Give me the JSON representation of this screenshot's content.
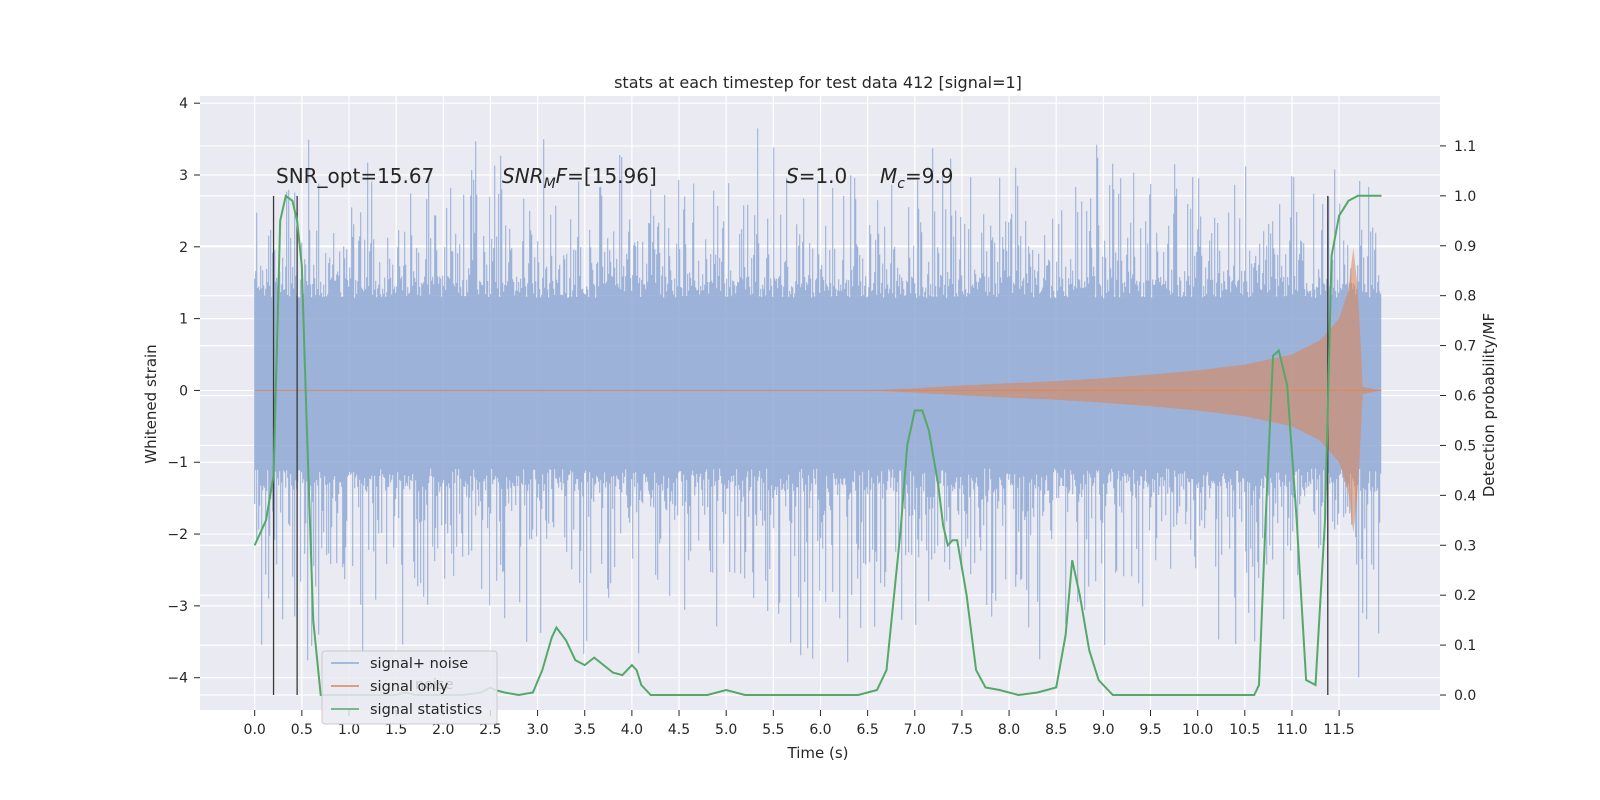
{
  "chart_data": {
    "type": "line",
    "title": "stats at each timestep for test data 412 [signal=1]",
    "xlabel": "Time (s)",
    "ylabel": "Whitened strain",
    "ylabel_right": "Detection probability/MF",
    "xlim": [
      -0.58,
      12.57
    ],
    "ylim": [
      -4.45,
      4.1
    ],
    "ylim_right": [
      -0.03,
      1.2
    ],
    "xticks": [
      "0.0",
      "0.5",
      "1.0",
      "1.5",
      "2.0",
      "2.5",
      "3.0",
      "3.5",
      "4.0",
      "4.5",
      "5.0",
      "5.5",
      "6.0",
      "6.5",
      "7.0",
      "7.5",
      "8.0",
      "8.5",
      "9.0",
      "9.5",
      "10.0",
      "10.5",
      "11.0",
      "11.5"
    ],
    "yticks": [
      "4",
      "3",
      "2",
      "1",
      "0",
      "−1",
      "−2",
      "−3",
      "−4"
    ],
    "yticks_right": [
      "1.1",
      "1.0",
      "0.9",
      "0.8",
      "0.7",
      "0.6",
      "0.5",
      "0.4",
      "0.3",
      "0.2",
      "0.1",
      "0.0"
    ],
    "grid": true,
    "legend": {
      "placement": "lower-left",
      "entries": [
        "signal+ noise",
        "signal only",
        "signal statistics"
      ],
      "ghost_text": "noise"
    },
    "annotations": {
      "snr_opt": "SNR_opt=15.67",
      "snr_mf_base": "SNR",
      "snr_mf_sub": "M",
      "snr_mf_rest": "F=[15.96]",
      "s_sym": "S",
      "s_rest": "=1.0",
      "mc_sym": "M",
      "mc_sub": "c",
      "mc_rest": "=9.9"
    },
    "series": [
      {
        "name": "signal+ noise",
        "color": "#8fa8d3",
        "t_range": [
          0.0,
          11.95
        ],
        "typical_range": [
          -1.4,
          1.6
        ],
        "peak_range": [
          -4.0,
          3.75
        ]
      },
      {
        "name": "signal only",
        "color": "#dd8452",
        "envelope": {
          "t": [
            0.0,
            6.5,
            7.0,
            7.5,
            8.0,
            8.5,
            9.0,
            9.5,
            10.0,
            10.5,
            11.0,
            11.3,
            11.5,
            11.6,
            11.65,
            11.7,
            11.75,
            11.95
          ],
          "amp": [
            0.0,
            0.0,
            0.03,
            0.07,
            0.1,
            0.13,
            0.17,
            0.22,
            0.28,
            0.36,
            0.5,
            0.7,
            1.0,
            1.4,
            2.0,
            1.4,
            0.05,
            0.0
          ]
        }
      },
      {
        "name": "signal statistics",
        "color": "#55a868",
        "axis": "right",
        "x": [
          0.0,
          0.12,
          0.2,
          0.27,
          0.33,
          0.4,
          0.45,
          0.5,
          0.55,
          0.62,
          0.7,
          0.78,
          1.0,
          1.2,
          1.4,
          1.5,
          1.6,
          1.7,
          1.9,
          2.2,
          2.4,
          2.45,
          2.5,
          2.55,
          2.65,
          2.8,
          2.95,
          3.05,
          3.15,
          3.2,
          3.3,
          3.4,
          3.5,
          3.6,
          3.7,
          3.8,
          3.9,
          4.0,
          4.05,
          4.1,
          4.2,
          4.4,
          4.6,
          4.8,
          5.0,
          5.2,
          5.6,
          6.0,
          6.4,
          6.6,
          6.7,
          6.85,
          6.92,
          7.0,
          7.08,
          7.15,
          7.25,
          7.3,
          7.35,
          7.4,
          7.45,
          7.55,
          7.65,
          7.75,
          7.9,
          8.1,
          8.3,
          8.5,
          8.6,
          8.67,
          8.75,
          8.85,
          8.95,
          9.1,
          9.3,
          9.5,
          10.0,
          10.5,
          10.6,
          10.65,
          10.72,
          10.8,
          10.86,
          10.95,
          11.05,
          11.15,
          11.25,
          11.35,
          11.42,
          11.5,
          11.6,
          11.7,
          11.8,
          11.95
        ],
        "values": [
          0.3,
          0.35,
          0.44,
          0.95,
          1.0,
          0.99,
          0.95,
          0.86,
          0.55,
          0.15,
          0.0,
          0.0,
          0.0,
          0.0,
          0.0,
          0.0,
          0.005,
          0.0,
          0.0,
          0.0,
          0.005,
          0.01,
          0.015,
          0.01,
          0.005,
          0.0,
          0.005,
          0.05,
          0.115,
          0.135,
          0.11,
          0.07,
          0.06,
          0.075,
          0.06,
          0.045,
          0.04,
          0.06,
          0.05,
          0.02,
          0.0,
          0.0,
          0.0,
          0.0,
          0.01,
          0.0,
          0.0,
          0.0,
          0.0,
          0.01,
          0.05,
          0.33,
          0.5,
          0.57,
          0.57,
          0.53,
          0.42,
          0.34,
          0.3,
          0.31,
          0.31,
          0.2,
          0.05,
          0.015,
          0.01,
          0.0,
          0.005,
          0.015,
          0.12,
          0.27,
          0.2,
          0.09,
          0.03,
          0.0,
          0.0,
          0.0,
          0.0,
          0.0,
          0.0,
          0.02,
          0.35,
          0.68,
          0.69,
          0.62,
          0.35,
          0.03,
          0.02,
          0.35,
          0.88,
          0.96,
          0.99,
          1.0,
          1.0,
          1.0
        ]
      }
    ],
    "markers": [
      0.2,
      0.45,
      11.38
    ]
  },
  "colors": {
    "axes_bg": "#eaeaf2",
    "grid": "#ffffff",
    "noise": "#8fa8d3",
    "signal": "#dd8452",
    "stats": "#55a868",
    "marker": "#3a3a3a"
  }
}
